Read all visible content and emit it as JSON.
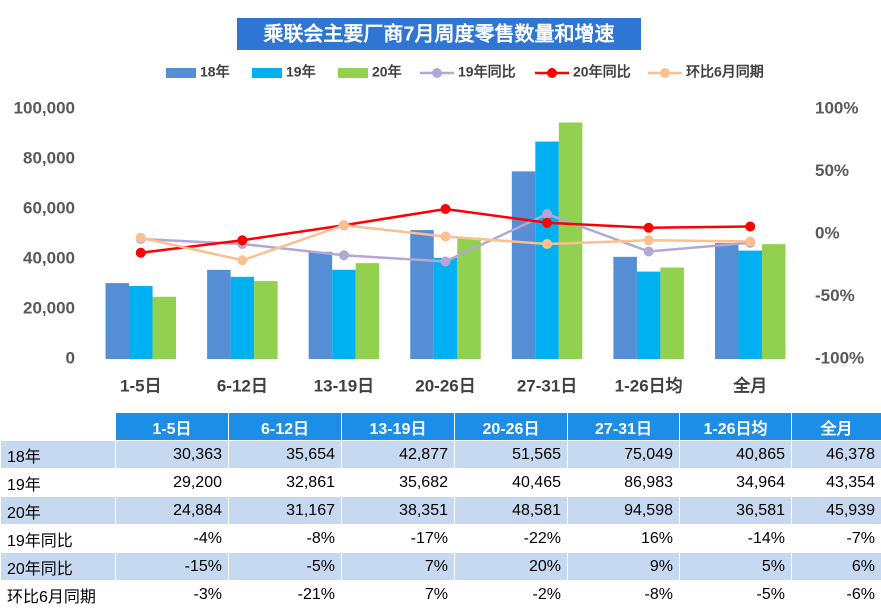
{
  "chart_data": {
    "type": "combo",
    "title": "乘联会主要厂商7月周度零售数量和增速",
    "categories": [
      "1-5日",
      "6-12日",
      "13-19日",
      "20-26日",
      "27-31日",
      "1-26日均",
      "全月"
    ],
    "ylim": [
      0,
      100000
    ],
    "yticks": [
      0,
      {
        "value": 20000,
        "label": "20,000"
      },
      {
        "value": 40000,
        "label": "40,000"
      },
      {
        "value": 60000,
        "label": "60,000"
      },
      {
        "value": 80000,
        "label": "80,000"
      },
      {
        "value": 100000,
        "label": "100,000"
      }
    ],
    "y2lim": [
      -100,
      100
    ],
    "y2ticks": [
      {
        "value": -100,
        "label": "-100%"
      },
      {
        "value": -50,
        "label": "-50%"
      },
      {
        "value": 0,
        "label": "0%"
      },
      {
        "value": 50,
        "label": "50%"
      },
      {
        "value": 100,
        "label": "100%"
      }
    ],
    "grid": false,
    "series": [
      {
        "name": "18年",
        "type": "bar",
        "color": "#558ed5",
        "values": [
          30363,
          35654,
          42877,
          51565,
          75049,
          40865,
          46378
        ],
        "value_labels": [
          "30,363",
          "35,654",
          "42,877",
          "51,565",
          "75,049",
          "40,865",
          "46,378"
        ]
      },
      {
        "name": "19年",
        "type": "bar",
        "color": "#00b0f0",
        "values": [
          29200,
          32861,
          35682,
          40465,
          86983,
          34964,
          43354
        ],
        "value_labels": [
          "29,200",
          "32,861",
          "35,682",
          "40,465",
          "86,983",
          "34,964",
          "43,354"
        ]
      },
      {
        "name": "20年",
        "type": "bar",
        "color": "#92d050",
        "values": [
          24884,
          31167,
          38351,
          48581,
          94598,
          36581,
          45939
        ],
        "value_labels": [
          "24,884",
          "31,167",
          "38,351",
          "48,581",
          "94,598",
          "36,581",
          "45,939"
        ]
      },
      {
        "name": "19年同比",
        "type": "line",
        "axis": "y2",
        "color": "#b4a7d6",
        "values": [
          -4,
          -8,
          -17,
          -22,
          16,
          -14,
          -7
        ],
        "value_labels": [
          "-4%",
          "-8%",
          "-17%",
          "-22%",
          "16%",
          "-14%",
          "-7%"
        ]
      },
      {
        "name": "20年同比",
        "type": "line",
        "axis": "y2",
        "color": "#ff0000",
        "values": [
          -15,
          -5,
          7,
          20,
          9,
          5,
          6
        ],
        "value_labels": [
          "-15%",
          "-5%",
          "7%",
          "20%",
          "9%",
          "5%",
          "6%"
        ]
      },
      {
        "name": "环比6月同期",
        "type": "line",
        "axis": "y2",
        "color": "#fac090",
        "values": [
          -3,
          -21,
          7,
          -2,
          -8,
          -5,
          -6
        ],
        "value_labels": [
          "-3%",
          "-21%",
          "7%",
          "-2%",
          "-8%",
          "-5%",
          "-6%"
        ]
      }
    ]
  }
}
